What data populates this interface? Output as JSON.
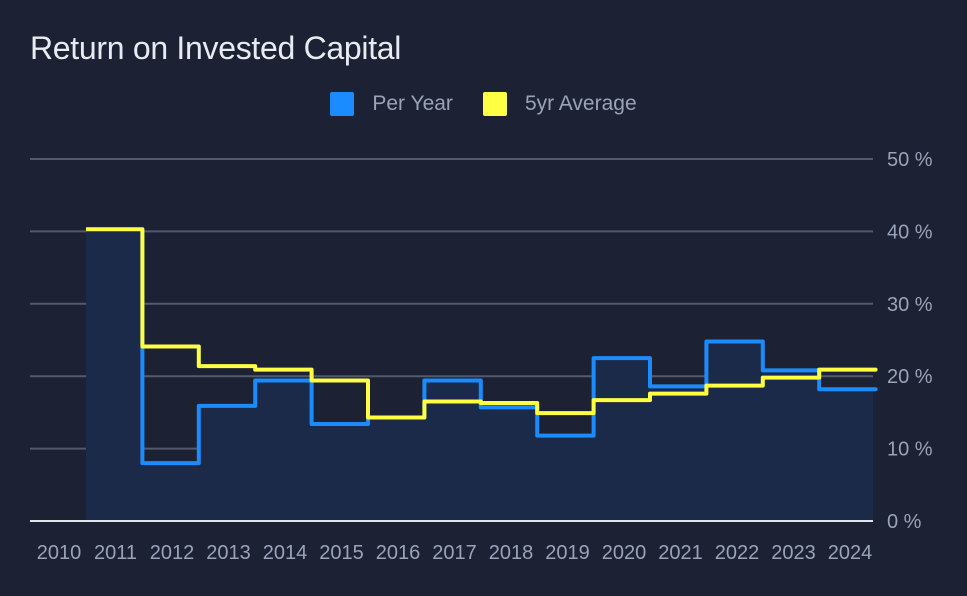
{
  "chart_data": {
    "type": "line",
    "title": "Return on Invested Capital",
    "x": [
      "2010",
      "2011",
      "2012",
      "2013",
      "2014",
      "2015",
      "2016",
      "2017",
      "2018",
      "2019",
      "2020",
      "2021",
      "2022",
      "2023",
      "2024"
    ],
    "ylim": [
      0,
      50
    ],
    "y_ticks": [
      "0 %",
      "10 %",
      "20 %",
      "30 %",
      "40 %",
      "50 %"
    ],
    "y_tick_values": [
      0,
      10,
      20,
      30,
      40,
      50
    ],
    "grid": true,
    "legend_position": "top-center",
    "series": [
      {
        "name": "Per Year",
        "color": "#1a8cff",
        "values": [
          40.3,
          8.0,
          15.9,
          19.4,
          13.4,
          14.3,
          19.4,
          15.7,
          11.8,
          22.5,
          18.6,
          24.8,
          20.8,
          18.2,
          18.2
        ]
      },
      {
        "name": "5yr Average",
        "color": "#ffff44",
        "values": [
          40.3,
          24.1,
          21.4,
          20.9,
          19.4,
          14.3,
          16.5,
          16.3,
          14.9,
          16.7,
          17.6,
          18.7,
          19.8,
          20.9,
          20.9
        ]
      }
    ],
    "colors": {
      "area_fill": "#1b2a48",
      "grid": "#525a6d",
      "axis": "#e0e3ea",
      "background": "#1c2133"
    }
  }
}
